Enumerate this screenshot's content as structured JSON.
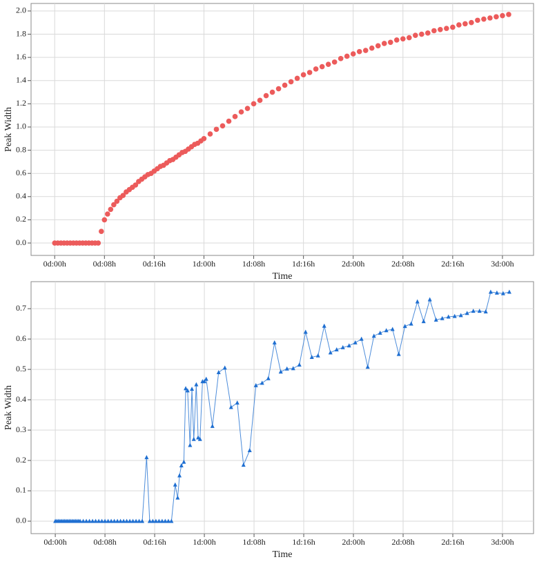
{
  "chart_data": [
    {
      "type": "scatter",
      "marker": "circle",
      "color": "#ec5b5b",
      "grid": true,
      "xlabel": "Time",
      "ylabel": "Peak Width",
      "xlim": [
        -3.8,
        77
      ],
      "ylim": [
        -0.107,
        2.065
      ],
      "xticks": [
        {
          "value": 0,
          "label": "0d:00h"
        },
        {
          "value": 8,
          "label": "0d:08h"
        },
        {
          "value": 16,
          "label": "0d:16h"
        },
        {
          "value": 24,
          "label": "1d:00h"
        },
        {
          "value": 32,
          "label": "1d:08h"
        },
        {
          "value": 40,
          "label": "1d:16h"
        },
        {
          "value": 48,
          "label": "2d:00h"
        },
        {
          "value": 56,
          "label": "2d:08h"
        },
        {
          "value": 64,
          "label": "2d:16h"
        },
        {
          "value": 72,
          "label": "3d:00h"
        }
      ],
      "yticks": [
        {
          "value": 0,
          "label": "0.0"
        },
        0.2,
        0.4,
        0.6,
        0.8,
        {
          "value": 1,
          "label": "1.0"
        },
        1.2,
        1.4,
        1.6,
        1.8,
        {
          "value": 2,
          "label": "2.0"
        }
      ],
      "x": [
        0,
        0.5,
        1,
        1.5,
        2,
        2.5,
        3,
        3.5,
        4,
        4.5,
        5,
        5.5,
        6,
        6.5,
        7,
        7.5,
        8,
        8.5,
        9,
        9.5,
        10,
        10.5,
        11,
        11.5,
        12,
        12.5,
        13,
        13.5,
        14,
        14.5,
        15,
        15.5,
        16,
        16.5,
        17,
        17.5,
        18,
        18.5,
        19,
        19.5,
        20,
        20.5,
        21,
        21.5,
        22,
        22.5,
        23,
        23.5,
        24,
        25,
        26,
        27,
        28,
        29,
        30,
        31,
        32,
        33,
        34,
        35,
        36,
        37,
        38,
        39,
        40,
        41,
        42,
        43,
        44,
        45,
        46,
        47,
        48,
        49,
        50,
        51,
        52,
        53,
        54,
        55,
        56,
        57,
        58,
        59,
        60,
        61,
        62,
        63,
        64,
        65,
        66,
        67,
        68,
        69,
        70,
        71,
        72,
        73
      ],
      "values": [
        0,
        0,
        0,
        0,
        0,
        0,
        0,
        0,
        0,
        0,
        0,
        0,
        0,
        0,
        0,
        0.1,
        0.2,
        0.25,
        0.29,
        0.33,
        0.36,
        0.39,
        0.41,
        0.44,
        0.46,
        0.48,
        0.5,
        0.53,
        0.55,
        0.57,
        0.59,
        0.6,
        0.62,
        0.64,
        0.66,
        0.67,
        0.69,
        0.71,
        0.72,
        0.74,
        0.76,
        0.78,
        0.79,
        0.81,
        0.83,
        0.85,
        0.86,
        0.88,
        0.9,
        0.94,
        0.98,
        1.01,
        1.05,
        1.09,
        1.13,
        1.16,
        1.2,
        1.23,
        1.27,
        1.3,
        1.33,
        1.36,
        1.39,
        1.42,
        1.45,
        1.47,
        1.5,
        1.52,
        1.54,
        1.56,
        1.59,
        1.61,
        1.63,
        1.65,
        1.66,
        1.68,
        1.7,
        1.72,
        1.73,
        1.75,
        1.76,
        1.77,
        1.79,
        1.8,
        1.81,
        1.83,
        1.84,
        1.85,
        1.86,
        1.88,
        1.89,
        1.9,
        1.92,
        1.93,
        1.94,
        1.95,
        1.96,
        1.97
      ]
    },
    {
      "type": "line",
      "marker": "triangle",
      "color": "#1f6fd1",
      "grid": true,
      "xlabel": "Time",
      "ylabel": "Peak Width",
      "xlim": [
        -3.9,
        77
      ],
      "ylim": [
        -0.041,
        0.789
      ],
      "xticks": [
        {
          "value": 0,
          "label": "0d:00h"
        },
        {
          "value": 8,
          "label": "0d:08h"
        },
        {
          "value": 16,
          "label": "0d:16h"
        },
        {
          "value": 24,
          "label": "1d:00h"
        },
        {
          "value": 32,
          "label": "1d:08h"
        },
        {
          "value": 40,
          "label": "1d:16h"
        },
        {
          "value": 48,
          "label": "2d:00h"
        },
        {
          "value": 56,
          "label": "2d:08h"
        },
        {
          "value": 64,
          "label": "2d:16h"
        },
        {
          "value": 72,
          "label": "3d:00h"
        }
      ],
      "yticks": [
        {
          "value": 0,
          "label": "0.0"
        },
        0.1,
        0.2,
        0.3,
        0.4,
        0.5,
        0.6,
        0.7
      ],
      "x": [
        0,
        0.25,
        0.5,
        0.75,
        1,
        1.25,
        1.5,
        1.75,
        2,
        2.25,
        2.5,
        2.75,
        3,
        3.25,
        3.5,
        3.75,
        4,
        4.5,
        5,
        5.5,
        6,
        6.5,
        7,
        7.5,
        8,
        8.5,
        9,
        9.5,
        10,
        10.5,
        11,
        11.5,
        12,
        12.5,
        13,
        13.5,
        14,
        14.7,
        15.2,
        15.7,
        16.2,
        16.7,
        17.2,
        17.7,
        18.2,
        18.7,
        19.3,
        19.7,
        20,
        20.3,
        20.7,
        21,
        21.3,
        21.7,
        22,
        22.3,
        22.7,
        23,
        23.3,
        23.7,
        24,
        24.3,
        25.3,
        26.3,
        27.3,
        28.3,
        29.3,
        30.3,
        31.3,
        32.3,
        33.3,
        34.3,
        35.3,
        36.3,
        37.3,
        38.3,
        39.3,
        40.3,
        41.3,
        42.3,
        43.3,
        44.3,
        45.3,
        46.3,
        47.3,
        48.3,
        49.3,
        50.3,
        51.3,
        52.3,
        53.3,
        54.3,
        55.3,
        56.3,
        57.3,
        58.3,
        59.3,
        60.3,
        61.3,
        62.3,
        63.3,
        64.3,
        65.3,
        66.3,
        67.3,
        68.3,
        69.3,
        70.1,
        71.1,
        72.1,
        73.1
      ],
      "values": [
        0,
        0,
        0,
        0,
        0,
        0,
        0,
        0,
        0,
        0,
        0,
        0,
        0,
        0,
        0,
        0,
        0,
        0,
        0,
        0,
        0,
        0,
        0,
        0,
        0,
        0,
        0,
        0,
        0,
        0,
        0,
        0,
        0,
        0,
        0,
        0,
        0,
        0.21,
        0,
        0,
        0,
        0,
        0,
        0,
        0,
        0,
        0.12,
        0.077,
        0.15,
        0.183,
        0.195,
        0.437,
        0.43,
        0.25,
        0.435,
        0.27,
        0.45,
        0.275,
        0.27,
        0.46,
        0.46,
        0.468,
        0.313,
        0.49,
        0.505,
        0.375,
        0.39,
        0.185,
        0.233,
        0.447,
        0.455,
        0.47,
        0.588,
        0.492,
        0.502,
        0.503,
        0.515,
        0.623,
        0.54,
        0.545,
        0.643,
        0.555,
        0.565,
        0.572,
        0.578,
        0.588,
        0.6,
        0.508,
        0.61,
        0.62,
        0.628,
        0.632,
        0.55,
        0.642,
        0.65,
        0.723,
        0.658,
        0.73,
        0.663,
        0.668,
        0.673,
        0.675,
        0.678,
        0.685,
        0.692,
        0.692,
        0.69,
        0.755,
        0.752,
        0.75,
        0.755
      ]
    }
  ]
}
